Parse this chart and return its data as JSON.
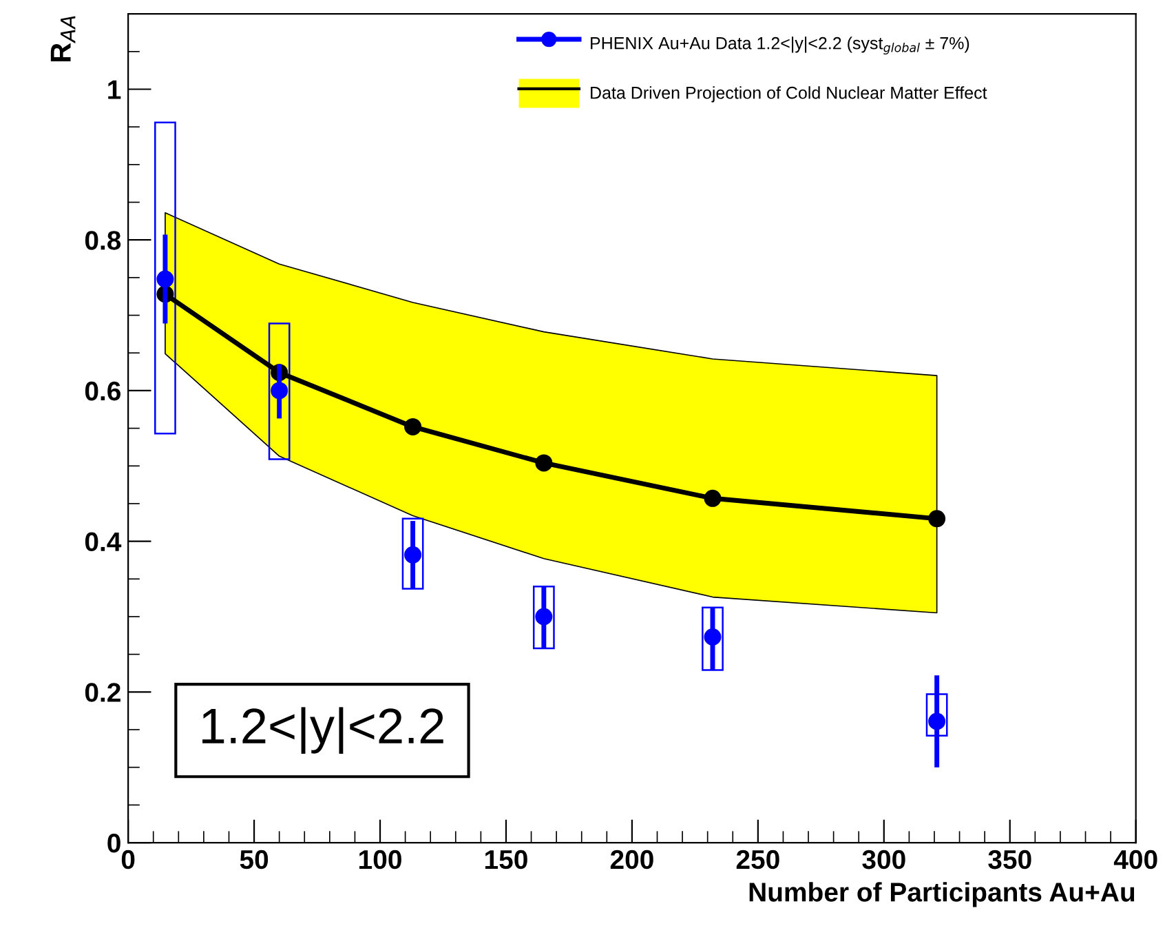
{
  "chart_data": {
    "type": "scatter",
    "xlabel": "Number of Participants Au+Au",
    "ylabel": "R$_{AA}$",
    "xlim": [
      0,
      400
    ],
    "ylim": [
      0,
      1.1
    ],
    "xticks": [
      0,
      50,
      100,
      150,
      200,
      250,
      300,
      350,
      400
    ],
    "yticks": [
      0,
      0.2,
      0.4,
      0.6,
      0.8,
      1
    ],
    "grid": false,
    "legend": "top",
    "marker": "circle",
    "series": [
      {
        "type": "bar",
        "color": "#0000ff",
        "x": [
          14.7,
          60,
          113,
          165,
          232,
          321
        ],
        "base": [
          0.543,
          0.509,
          0.337,
          0.258,
          0.229,
          0.142
        ],
        "values": [
          0.413,
          0.18,
          0.093,
          0.082,
          0.083,
          0.055
        ]
      },
      {
        "type": "line",
        "name": "Data Driven Projection of Cold Nuclear Matter Effect",
        "color": "#000000",
        "x": [
          14.7,
          60,
          113,
          165,
          232,
          321
        ],
        "values": [
          0.728,
          0.624,
          0.552,
          0.504,
          0.457,
          0.43
        ],
        "lower": [
          0.649,
          0.513,
          0.434,
          0.377,
          0.326,
          0.305
        ],
        "upper": [
          0.836,
          0.768,
          0.717,
          0.678,
          0.642,
          0.62
        ]
      },
      {
        "name": "PHENIX Au+Au Data 1.2<|y|<2.2 (syst$_{global}$ ± 7%)",
        "color": "#0000ff",
        "x": [
          14.7,
          60,
          113,
          165,
          232,
          321
        ],
        "values": [
          0.748,
          0.6,
          0.382,
          0.3,
          0.273,
          0.161
        ],
        "errors": [
          [
            0.689,
            0.807
          ],
          [
            0.563,
            0.635
          ],
          [
            0.337,
            0.427
          ],
          [
            0.258,
            0.34
          ],
          [
            0.229,
            0.312
          ],
          [
            0.1,
            0.222
          ]
        ]
      }
    ],
    "annotations": [
      "1.2<|y|<2.2"
    ]
  }
}
